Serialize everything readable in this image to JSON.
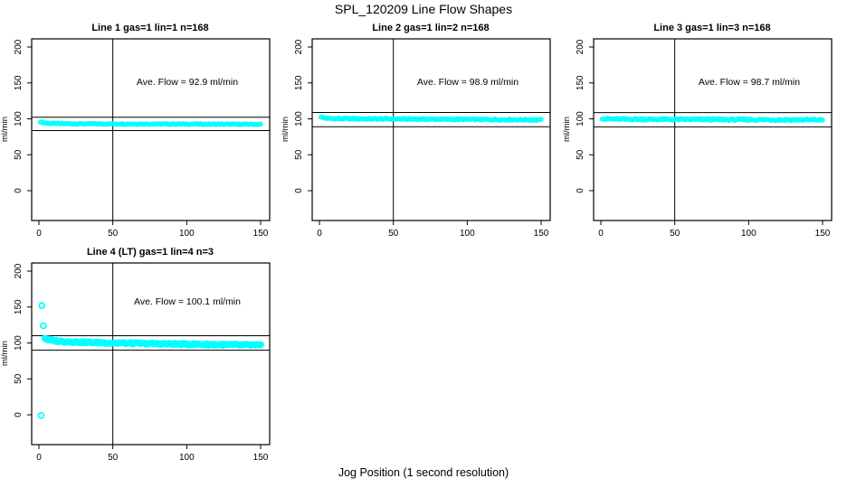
{
  "title": "SPL_120209  Line Flow Shapes",
  "xlabel": "Jog Position (1 second resolution)",
  "colors": {
    "points": "#00FFFF",
    "axis": "#000000",
    "background": "#FFFFFF"
  },
  "chart_data": [
    {
      "type": "scatter",
      "title": "Line 1 gas=1 lin=1 n=168",
      "annotation": "Ave. Flow =  92.9  ml/min",
      "ave_flow": 92.9,
      "n": 168,
      "ylabel": "ml/min",
      "xlim": [
        0,
        150
      ],
      "ylim": [
        0,
        200
      ],
      "x_ticks": [
        0,
        50,
        100,
        150
      ],
      "y_ticks": [
        0,
        50,
        100,
        150,
        200
      ],
      "vline_x": 50,
      "hlines": [
        102.2,
        83.6
      ],
      "legend": "none",
      "grid": false,
      "marker": "open-circle",
      "marker_radius": 2.1,
      "jitter": 0.6,
      "points_drawn": 168,
      "band_anchors": [
        [
          1,
          95.8
        ],
        [
          3,
          94.6
        ],
        [
          6,
          93.9
        ],
        [
          12,
          93.4
        ],
        [
          25,
          93.1
        ],
        [
          50,
          92.9
        ],
        [
          75,
          92.8
        ],
        [
          100,
          92.7
        ],
        [
          125,
          92.5
        ],
        [
          150,
          92.3
        ]
      ],
      "outliers": []
    },
    {
      "type": "scatter",
      "title": "Line 2 gas=1 lin=2 n=168",
      "annotation": "Ave. Flow =  98.9  ml/min",
      "ave_flow": 98.9,
      "n": 168,
      "ylabel": "ml/min",
      "xlim": [
        0,
        150
      ],
      "ylim": [
        0,
        200
      ],
      "x_ticks": [
        0,
        50,
        100,
        150
      ],
      "y_ticks": [
        0,
        50,
        100,
        150,
        200
      ],
      "vline_x": 50,
      "hlines": [
        108.8,
        89.0
      ],
      "legend": "none",
      "grid": false,
      "marker": "open-circle",
      "marker_radius": 2.1,
      "jitter": 0.9,
      "points_drawn": 168,
      "band_anchors": [
        [
          1,
          103.0
        ],
        [
          3,
          101.2
        ],
        [
          6,
          100.5
        ],
        [
          15,
          100.2
        ],
        [
          40,
          99.9
        ],
        [
          70,
          99.6
        ],
        [
          100,
          99.2
        ],
        [
          125,
          98.9
        ],
        [
          150,
          98.6
        ]
      ],
      "outliers": []
    },
    {
      "type": "scatter",
      "title": "Line 3 gas=1 lin=3 n=168",
      "annotation": "Ave. Flow =  98.7  ml/min",
      "ave_flow": 98.7,
      "n": 168,
      "ylabel": "ml/min",
      "xlim": [
        0,
        150
      ],
      "ylim": [
        0,
        200
      ],
      "x_ticks": [
        0,
        50,
        100,
        150
      ],
      "y_ticks": [
        0,
        50,
        100,
        150,
        200
      ],
      "vline_x": 50,
      "hlines": [
        108.6,
        88.8
      ],
      "legend": "none",
      "grid": false,
      "marker": "open-circle",
      "marker_radius": 2.1,
      "jitter": 1.2,
      "points_drawn": 168,
      "band_anchors": [
        [
          1,
          100.8
        ],
        [
          4,
          100.0
        ],
        [
          10,
          99.6
        ],
        [
          30,
          99.3
        ],
        [
          60,
          99.1
        ],
        [
          90,
          98.9
        ],
        [
          120,
          98.7
        ],
        [
          150,
          98.5
        ]
      ],
      "outliers": []
    },
    {
      "type": "scatter",
      "title": "Line 4 (LT) gas=1 lin=4 n=3",
      "annotation": "Ave. Flow =  100.1  ml/min",
      "ave_flow": 100.1,
      "n": 3,
      "ylabel": "ml/min",
      "xlim": [
        0,
        150
      ],
      "ylim": [
        0,
        200
      ],
      "x_ticks": [
        0,
        50,
        100,
        150
      ],
      "y_ticks": [
        0,
        50,
        100,
        150,
        200
      ],
      "vline_x": 50,
      "hlines": [
        110.1,
        90.1
      ],
      "legend": "none",
      "grid": false,
      "marker": "open-circle",
      "marker_radius": 3.0,
      "jitter": 1.0,
      "points_drawn": 150,
      "band_anchors": [
        [
          4,
          106.8
        ],
        [
          6,
          104.8
        ],
        [
          9,
          103.4
        ],
        [
          15,
          102.2
        ],
        [
          25,
          101.2
        ],
        [
          40,
          100.4
        ],
        [
          60,
          99.6
        ],
        [
          80,
          98.9
        ],
        [
          100,
          98.3
        ],
        [
          120,
          97.7
        ],
        [
          150,
          97.0
        ]
      ],
      "outliers": [
        [
          2,
          152
        ],
        [
          3,
          124
        ],
        [
          1.5,
          -1
        ]
      ]
    }
  ]
}
